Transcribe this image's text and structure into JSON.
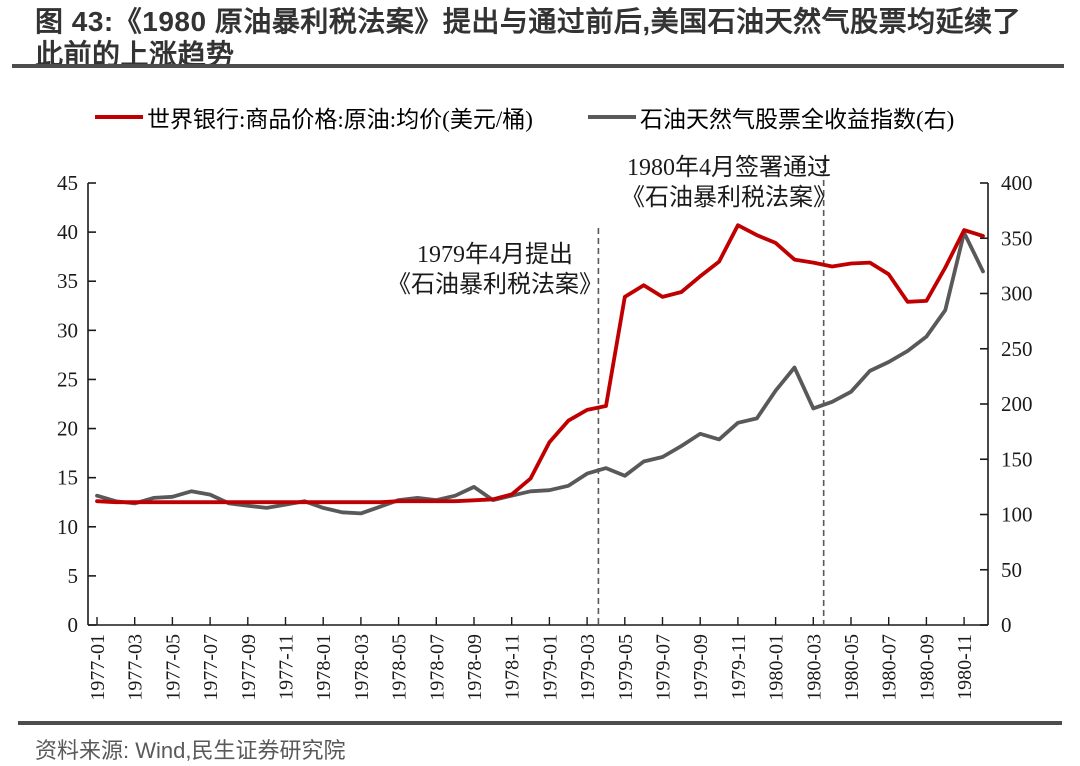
{
  "figure": {
    "title": "图 43:《1980 原油暴利税法案》提出与通过前后,美国石油天然气股票均延续了此前的上涨趋势",
    "source": "资料来源: Wind,民生证券研究院"
  },
  "legend": {
    "items": [
      {
        "label": "世界银行:商品价格:原油:均价(美元/桶)",
        "color": "#c00000"
      },
      {
        "label": "石油天然气股票全收益指数(右)",
        "color": "#595959"
      }
    ]
  },
  "annotations": [
    {
      "line1": "1979年4月提出",
      "line2": "《石油暴利税法案》"
    },
    {
      "line1": "1980年4月签署通过",
      "line2": "《石油暴利税法案》"
    }
  ],
  "colors": {
    "oil_price_red": "#c00000",
    "stock_index_gray": "#595959",
    "axis_text": "#1a1a1a",
    "rule_dark": "#4d4d4d",
    "dashed_event_line": "#595959"
  },
  "chart_data": {
    "type": "line",
    "x_unit": "month",
    "x_start": "1977-01",
    "x_end": "1980-12",
    "x_tick_labels": [
      "1977-01",
      "1977-03",
      "1977-05",
      "1977-07",
      "1977-09",
      "1977-11",
      "1978-01",
      "1978-03",
      "1978-05",
      "1978-07",
      "1978-09",
      "1978-11",
      "1979-01",
      "1979-03",
      "1979-05",
      "1979-07",
      "1979-09",
      "1979-11",
      "1980-01",
      "1980-03",
      "1980-05",
      "1980-07",
      "1980-09",
      "1980-11"
    ],
    "left_axis": {
      "min": 0,
      "max": 45,
      "step": 5,
      "ticks": [
        0,
        5,
        10,
        15,
        20,
        25,
        30,
        35,
        40,
        45
      ]
    },
    "right_axis": {
      "min": 0,
      "max": 400,
      "step": 50,
      "ticks": [
        0,
        50,
        100,
        150,
        200,
        250,
        300,
        350,
        400
      ]
    },
    "grid": false,
    "legend_position": "top",
    "series": [
      {
        "name": "世界银行:商品价格:原油:均价(美元/桶)",
        "axis": "left",
        "color": "#c00000",
        "values": [
          12.6,
          12.5,
          12.5,
          12.5,
          12.5,
          12.5,
          12.5,
          12.5,
          12.5,
          12.5,
          12.5,
          12.5,
          12.5,
          12.5,
          12.5,
          12.5,
          12.6,
          12.6,
          12.6,
          12.6,
          12.7,
          12.8,
          13.3,
          14.9,
          18.6,
          20.8,
          21.9,
          22.3,
          33.4,
          34.6,
          33.4,
          33.9,
          35.5,
          37.0,
          40.7,
          39.7,
          38.9,
          37.2,
          36.9,
          36.5,
          36.8,
          36.9,
          35.7,
          32.9,
          33.0,
          36.4,
          40.2,
          39.6
        ]
      },
      {
        "name": "石油天然气股票全收益指数(右)",
        "axis": "right",
        "color": "#595959",
        "values": [
          117,
          112,
          110,
          115,
          116,
          121,
          118,
          110,
          108,
          106,
          109,
          112,
          106,
          102,
          101,
          107,
          113,
          115,
          113,
          117,
          125,
          113,
          117,
          121,
          122,
          126,
          137,
          142,
          135,
          148,
          152,
          162,
          173,
          168,
          183,
          187,
          212,
          233,
          196,
          202,
          211,
          230,
          238,
          248,
          261,
          285,
          355,
          320
        ]
      }
    ],
    "events": [
      {
        "label": "1979年4月提出《石油暴利税法案》",
        "x": "1979-04",
        "month_index": 26.6
      },
      {
        "label": "1980年4月签署通过《石油暴利税法案》",
        "x": "1980-04",
        "month_index": 38.55
      }
    ]
  }
}
